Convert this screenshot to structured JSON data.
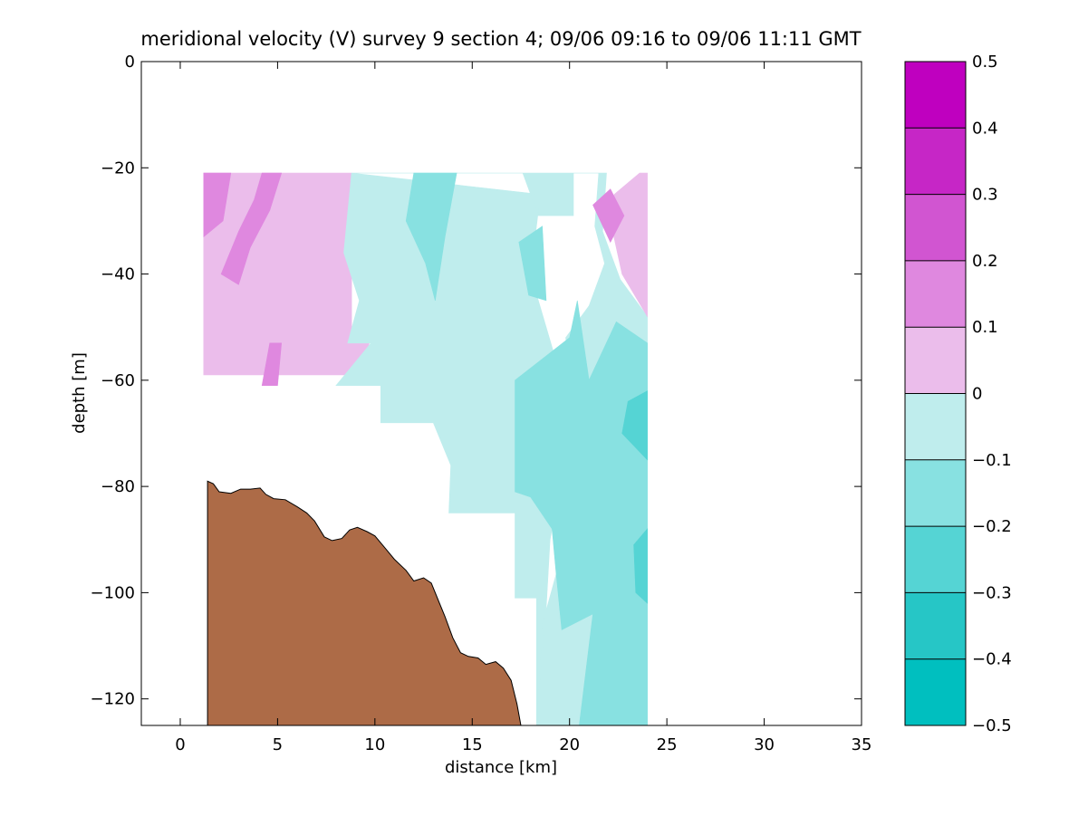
{
  "chart_data": {
    "type": "contour",
    "title": "meridional velocity (V) survey 9 section 4; 09/06 09:16 to 09/06 11:11 GMT",
    "xlabel": "distance [km]",
    "ylabel": "depth [m]",
    "xlim": [
      -2,
      35
    ],
    "ylim": [
      -125,
      0
    ],
    "xticks": [
      0,
      5,
      10,
      15,
      20,
      25,
      30,
      35
    ],
    "yticks": [
      0,
      -20,
      -40,
      -60,
      -80,
      -100,
      -120
    ],
    "xtick_labels": [
      "0",
      "5",
      "10",
      "15",
      "20",
      "25",
      "30",
      "35"
    ],
    "ytick_labels": [
      "0",
      "−20",
      "−40",
      "−60",
      "−80",
      "−100",
      "−120"
    ],
    "colorbar": {
      "levels": [
        -0.5,
        -0.4,
        -0.3,
        -0.2,
        -0.1,
        0,
        0.1,
        0.2,
        0.3,
        0.4,
        0.5
      ],
      "tick_labels": [
        "−0.5",
        "−0.4",
        "−0.3",
        "−0.2",
        "−0.1",
        "0",
        "0.1",
        "0.2",
        "0.3",
        "0.4",
        "0.5"
      ],
      "colors": [
        "#00bfbf",
        "#26c6c6",
        "#55d4d4",
        "#88e1e1",
        "#bfeded",
        "#ebbdeb",
        "#df88df",
        "#d155d1",
        "#c626c6",
        "#bf00bf"
      ]
    },
    "regions": [
      {
        "band": 5,
        "polygon": [
          [
            1.2,
            -21
          ],
          [
            8.8,
            -21
          ],
          [
            8.8,
            -53
          ],
          [
            9.8,
            -52
          ],
          [
            9.2,
            -59
          ],
          [
            1.2,
            -59
          ]
        ]
      },
      {
        "band": 6,
        "polygon": [
          [
            1.2,
            -21
          ],
          [
            2.6,
            -21
          ],
          [
            2.2,
            -30
          ],
          [
            1.2,
            -33
          ]
        ]
      },
      {
        "band": 6,
        "polygon": [
          [
            4.2,
            -21
          ],
          [
            5.2,
            -21
          ],
          [
            4.6,
            -28
          ],
          [
            3.6,
            -35
          ],
          [
            3.0,
            -42
          ],
          [
            2.1,
            -40
          ],
          [
            3.0,
            -32
          ],
          [
            3.8,
            -26
          ]
        ]
      },
      {
        "band": 6,
        "polygon": [
          [
            4.6,
            -53
          ],
          [
            5.2,
            -53
          ],
          [
            5.0,
            -61
          ],
          [
            4.2,
            -61
          ]
        ]
      },
      {
        "band": 4,
        "polygon": [
          [
            8.8,
            -21
          ],
          [
            17.6,
            -21
          ],
          [
            18.4,
            -29
          ],
          [
            20.2,
            -29
          ],
          [
            20.2,
            -21
          ],
          [
            21.5,
            -21
          ],
          [
            21.3,
            -31
          ],
          [
            21.8,
            -38
          ],
          [
            21.0,
            -46
          ],
          [
            19.8,
            -52
          ],
          [
            20.2,
            -60
          ],
          [
            19.9,
            -70
          ],
          [
            19.8,
            -79
          ],
          [
            19.5,
            -94
          ],
          [
            18.6,
            -106
          ],
          [
            18.3,
            -125
          ],
          [
            24,
            -125
          ],
          [
            24,
            -48
          ],
          [
            22.6,
            -41
          ],
          [
            21.7,
            -32
          ],
          [
            21.9,
            -21
          ],
          [
            17.6,
            -21
          ],
          [
            8.8,
            -21
          ],
          [
            8.4,
            -36
          ],
          [
            9.2,
            -45
          ],
          [
            8.6,
            -53
          ],
          [
            9.8,
            -53
          ],
          [
            8.0,
            -61
          ],
          [
            10.3,
            -61
          ],
          [
            10.3,
            -68
          ],
          [
            13.0,
            -68
          ],
          [
            13.9,
            -76
          ],
          [
            13.8,
            -85
          ],
          [
            17.2,
            -85
          ],
          [
            17.2,
            -101
          ],
          [
            18.3,
            -101
          ],
          [
            18.3,
            -125
          ],
          [
            18.8,
            -103
          ],
          [
            19.0,
            -90
          ],
          [
            19.6,
            -78
          ],
          [
            18.6,
            -70
          ],
          [
            19.2,
            -55
          ],
          [
            18.0,
            -40
          ],
          [
            18.5,
            -25
          ]
        ]
      },
      {
        "band": 3,
        "polygon": [
          [
            12.0,
            -21
          ],
          [
            14.2,
            -21
          ],
          [
            13.6,
            -33
          ],
          [
            13.1,
            -45
          ],
          [
            12.6,
            -38
          ],
          [
            11.6,
            -30
          ]
        ]
      },
      {
        "band": 3,
        "polygon": [
          [
            17.4,
            -34
          ],
          [
            18.6,
            -31
          ],
          [
            18.8,
            -45
          ],
          [
            17.9,
            -44
          ]
        ]
      },
      {
        "band": 3,
        "polygon": [
          [
            17.2,
            -60
          ],
          [
            20.0,
            -52
          ],
          [
            20.4,
            -45
          ],
          [
            21.0,
            -60
          ],
          [
            22.4,
            -49
          ],
          [
            24,
            -53
          ],
          [
            24,
            -125
          ],
          [
            20.5,
            -125
          ],
          [
            21.2,
            -104
          ],
          [
            19.6,
            -107
          ],
          [
            19.3,
            -96
          ],
          [
            19.1,
            -88
          ],
          [
            18.0,
            -82
          ],
          [
            17.2,
            -81
          ]
        ]
      },
      {
        "band": 2,
        "polygon": [
          [
            23.0,
            -64
          ],
          [
            24,
            -62
          ],
          [
            24,
            -75
          ],
          [
            22.7,
            -70
          ]
        ]
      },
      {
        "band": 2,
        "polygon": [
          [
            23.3,
            -91
          ],
          [
            24,
            -88
          ],
          [
            24,
            -102
          ],
          [
            23.4,
            -100
          ]
        ]
      },
      {
        "band": 5,
        "polygon": [
          [
            22.3,
            -25
          ],
          [
            23.6,
            -21
          ],
          [
            24,
            -21
          ],
          [
            24,
            -48
          ],
          [
            22.7,
            -40
          ],
          [
            22.1,
            -30
          ]
        ]
      },
      {
        "band": 6,
        "polygon": [
          [
            21.2,
            -27
          ],
          [
            22.1,
            -24
          ],
          [
            22.8,
            -29
          ],
          [
            22.1,
            -34
          ]
        ]
      }
    ],
    "bathymetry_profile": [
      [
        1.4,
        -79
      ],
      [
        1.7,
        -79.5
      ],
      [
        2.0,
        -81
      ],
      [
        2.6,
        -81.3
      ],
      [
        3.1,
        -80.5
      ],
      [
        3.6,
        -80.5
      ],
      [
        4.1,
        -80.3
      ],
      [
        4.4,
        -81.5
      ],
      [
        4.8,
        -82.3
      ],
      [
        5.4,
        -82.5
      ],
      [
        6.0,
        -83.8
      ],
      [
        6.5,
        -85
      ],
      [
        6.9,
        -86.5
      ],
      [
        7.4,
        -89.5
      ],
      [
        7.8,
        -90.2
      ],
      [
        8.3,
        -89.8
      ],
      [
        8.7,
        -88.2
      ],
      [
        9.1,
        -87.7
      ],
      [
        9.6,
        -88.5
      ],
      [
        10.0,
        -89.3
      ],
      [
        10.5,
        -91.5
      ],
      [
        11.0,
        -93.7
      ],
      [
        11.6,
        -95.8
      ],
      [
        12.0,
        -97.8
      ],
      [
        12.5,
        -97.2
      ],
      [
        12.9,
        -98.2
      ],
      [
        13.3,
        -101.8
      ],
      [
        13.6,
        -104.5
      ],
      [
        14.0,
        -108.5
      ],
      [
        14.4,
        -111.3
      ],
      [
        14.8,
        -112
      ],
      [
        15.3,
        -112.3
      ],
      [
        15.7,
        -113.5
      ],
      [
        16.2,
        -113.0
      ],
      [
        16.6,
        -114.2
      ],
      [
        17.0,
        -116.5
      ],
      [
        17.3,
        -121
      ],
      [
        17.5,
        -125
      ]
    ],
    "bathymetry_color": "#ad6b47"
  }
}
